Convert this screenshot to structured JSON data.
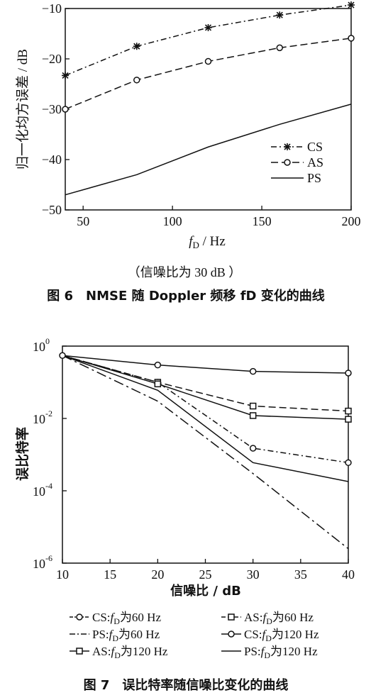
{
  "chart_data": [
    {
      "type": "line",
      "xlabel_main": "f",
      "xlabel_sub": "D",
      "xlabel_unit": " / Hz",
      "ylabel": "归一化均方误差 / dB",
      "xlim": [
        40,
        200
      ],
      "ylim": [
        -50,
        -10
      ],
      "xticks": [
        50,
        100,
        150,
        200
      ],
      "yticks": [
        -10,
        -20,
        -30,
        -40,
        -50
      ],
      "grid": false,
      "legend_position": "bottom-right",
      "note": "（信噪比为 30 dB ）",
      "caption": "图 6　NMSE 随 Doppler 频移 fD 变化的曲线",
      "series": [
        {
          "name": "CS",
          "marker": "star",
          "dash": "8,4,2,4",
          "x": [
            40,
            80,
            120,
            160,
            200
          ],
          "y": [
            -23.3,
            -17.5,
            -13.8,
            -11.3,
            -9.3
          ]
        },
        {
          "name": "AS",
          "marker": "circle",
          "dash": "10,5",
          "x": [
            40,
            80,
            120,
            160,
            200
          ],
          "y": [
            -30,
            -24.2,
            -20.5,
            -17.8,
            -15.9
          ]
        },
        {
          "name": "PS",
          "marker": "none",
          "dash": "",
          "x": [
            40,
            80,
            120,
            160,
            200
          ],
          "y": [
            -47,
            -43,
            -37.5,
            -33,
            -29
          ]
        }
      ]
    },
    {
      "type": "line",
      "xlabel": "信噪比 / dB",
      "ylabel": "误比特率",
      "xlim": [
        10,
        40
      ],
      "ylim": [
        1e-06,
        1
      ],
      "yscale": "log",
      "xticks": [
        10,
        15,
        20,
        25,
        30,
        35,
        40
      ],
      "yticks": [
        {
          "base": "10",
          "exp": "0",
          "value": 1
        },
        {
          "base": "10",
          "exp": "-2",
          "value": 0.01
        },
        {
          "base": "10",
          "exp": "-4",
          "value": 0.0001
        },
        {
          "base": "10",
          "exp": "-6",
          "value": 1e-06
        }
      ],
      "grid": false,
      "legend_position": "bottom",
      "caption": "图 7　误比特率随信噪比变化的曲线",
      "series": [
        {
          "name": "CS: fD为60 Hz",
          "prefix": "CS:",
          "rest": "为60 Hz",
          "marker": "circle",
          "dash": "8,4,2,4",
          "x": [
            10,
            20,
            30,
            40
          ],
          "y": [
            0.55,
            0.1,
            0.0015,
            0.0006
          ]
        },
        {
          "name": "AS: fD为60 Hz",
          "prefix": "AS:",
          "rest": "为60 Hz",
          "marker": "square",
          "dash": "10,5",
          "x": [
            10,
            20,
            30,
            40
          ],
          "y": [
            0.55,
            0.1,
            0.022,
            0.016
          ]
        },
        {
          "name": "PS: fD为60 Hz",
          "prefix": "PS:",
          "rest": "为60 Hz",
          "marker": "none",
          "dash": "14,5,3,5",
          "x": [
            10,
            20,
            30,
            40
          ],
          "y": [
            0.55,
            0.03,
            0.0003,
            2.5e-06
          ]
        },
        {
          "name": "CS: fD为120 Hz",
          "prefix": "CS:",
          "rest": "为120 Hz",
          "marker": "circle",
          "dash": "",
          "x": [
            10,
            20,
            30,
            40
          ],
          "y": [
            0.55,
            0.3,
            0.2,
            0.18
          ]
        },
        {
          "name": "AS: fD为120 Hz",
          "prefix": "AS:",
          "rest": "为120 Hz",
          "marker": "square",
          "dash": "",
          "x": [
            10,
            20,
            30,
            40
          ],
          "y": [
            0.55,
            0.09,
            0.012,
            0.0095
          ]
        },
        {
          "name": "PS: fD为120 Hz",
          "prefix": "PS:",
          "rest": "为120 Hz",
          "marker": "none",
          "dash": "",
          "x": [
            10,
            20,
            30,
            40
          ],
          "y": [
            0.55,
            0.06,
            0.0006,
            0.00018
          ]
        }
      ]
    }
  ]
}
